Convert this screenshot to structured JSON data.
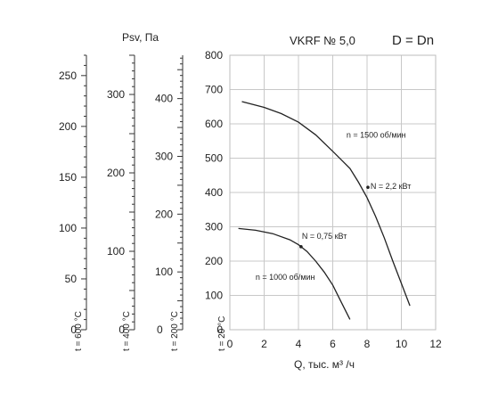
{
  "chart_data": {
    "type": "line",
    "title": "VKRF № 5,0",
    "subtitle": "D = Dn",
    "ylabel": "Psv, Па",
    "xlabel": "Q, тыс. м³ /ч",
    "xlim": [
      0,
      12
    ],
    "xticks": [
      0,
      2,
      4,
      6,
      8,
      10,
      12
    ],
    "ylim": [
      0,
      800
    ],
    "yticks": [
      0,
      100,
      200,
      300,
      400,
      500,
      600,
      700,
      800
    ],
    "grid": true,
    "extra_axes": [
      {
        "label": "t = 600 °C",
        "max": 270,
        "ticks": [
          0,
          50,
          100,
          150,
          200,
          250
        ]
      },
      {
        "label": "t = 400 °C",
        "max": 350,
        "ticks": [
          0,
          100,
          200,
          300
        ]
      },
      {
        "label": "t = 200 °C",
        "max": 475,
        "ticks": [
          100,
          200,
          300,
          400
        ]
      },
      {
        "label": "t = 20 °C",
        "max": 800,
        "ticks": []
      }
    ],
    "series": [
      {
        "name": "n = 1500 об/мин",
        "x": [
          0.7,
          2.0,
          3.0,
          4.0,
          5.0,
          6.0,
          7.0,
          7.5,
          8.0,
          8.5,
          9.0,
          9.5,
          10.0,
          10.5
        ],
        "y": [
          665,
          648,
          630,
          605,
          568,
          520,
          470,
          430,
          385,
          330,
          268,
          200,
          135,
          70
        ]
      },
      {
        "name": "n = 1000 об/мин",
        "x": [
          0.5,
          1.5,
          2.5,
          3.5,
          4.0,
          4.5,
          5.0,
          5.5,
          6.0,
          6.5,
          7.0
        ],
        "y": [
          295,
          290,
          280,
          262,
          248,
          228,
          200,
          168,
          130,
          80,
          30
        ]
      }
    ],
    "annotations": [
      {
        "text": "n = 1500 об/мин",
        "x": 6.8,
        "y": 560
      },
      {
        "text": "N = 2,2 кВт",
        "x": 8.2,
        "y": 410
      },
      {
        "text": "N = 0,75 кВт",
        "x": 4.2,
        "y": 265
      },
      {
        "text": "n = 1000 об/мин",
        "x": 1.5,
        "y": 145
      }
    ],
    "markers": [
      {
        "x": 8.05,
        "y": 415
      },
      {
        "x": 4.15,
        "y": 242
      }
    ]
  }
}
